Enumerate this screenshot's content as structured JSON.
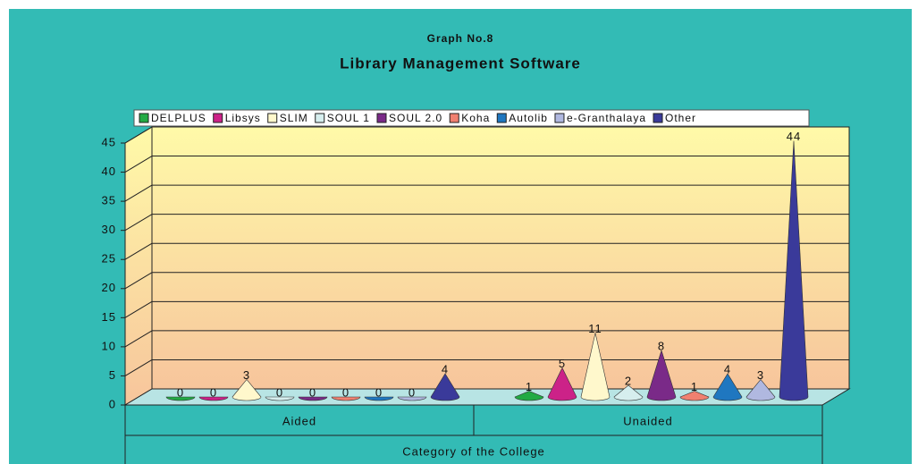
{
  "chart_data": {
    "type": "bar",
    "title": "Graph No.8",
    "subtitle": "Library Management Software",
    "x_label": "Category of the College",
    "categories": [
      "Aided",
      "Unaided"
    ],
    "series": [
      {
        "name": "DELPLUS",
        "color": "#22aa44",
        "values": [
          0,
          1
        ]
      },
      {
        "name": "Libsys",
        "color": "#cc2288",
        "values": [
          0,
          5
        ]
      },
      {
        "name": "SLIM",
        "color": "#fff8cc",
        "values": [
          3,
          11
        ]
      },
      {
        "name": "SOUL 1",
        "color": "#d6eeee",
        "values": [
          0,
          2
        ]
      },
      {
        "name": "SOUL 2.0",
        "color": "#7a2a88",
        "values": [
          0,
          8
        ]
      },
      {
        "name": "Koha",
        "color": "#f08070",
        "values": [
          0,
          1
        ]
      },
      {
        "name": "Autolib",
        "color": "#1f77c0",
        "values": [
          0,
          4
        ]
      },
      {
        "name": "e-Granthalaya",
        "color": "#b0b8e0",
        "values": [
          0,
          3
        ]
      },
      {
        "name": "Other",
        "color": "#3a3a9a",
        "values": [
          4,
          44
        ]
      }
    ],
    "ylim": [
      0,
      45
    ],
    "yticks": [
      0,
      5,
      10,
      15,
      20,
      25,
      30,
      35,
      40,
      45
    ],
    "grid": true,
    "legend": "top"
  }
}
